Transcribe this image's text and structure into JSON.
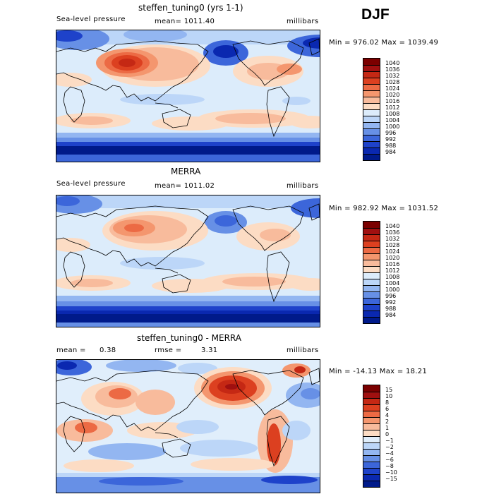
{
  "season": "DJF",
  "palette_abs": [
    "#7b0000",
    "#a01010",
    "#c52814",
    "#dc4020",
    "#ec6a44",
    "#f4966e",
    "#f8bb9c",
    "#fcdcc4",
    "#dcecfb",
    "#bcd6f8",
    "#93b6f1",
    "#6790e6",
    "#3c66da",
    "#1e42ca",
    "#0a28b0",
    "#001a8a"
  ],
  "palette_diff": [
    "#7b0000",
    "#a01010",
    "#c52814",
    "#dc4020",
    "#ec6a44",
    "#f4966e",
    "#f8bb9c",
    "#fcdcc4",
    "#e0eefb",
    "#bcd6f8",
    "#93b6f1",
    "#6790e6",
    "#3c66da",
    "#1e42ca",
    "#0a28b0",
    "#001a8a"
  ],
  "panels": [
    {
      "title": "steffen_tuning0 (yrs 1-1)",
      "variable": "Sea-level pressure",
      "stat_text": "mean= 1011.40",
      "units": "millibars",
      "range_text": "Min = 976.02 Max = 1039.49",
      "cbar_labels": [
        "1040",
        "1036",
        "1032",
        "1028",
        "1024",
        "1020",
        "1016",
        "1012",
        "1008",
        "1004",
        "1000",
        "996",
        "992",
        "988",
        "984"
      ]
    },
    {
      "title": "MERRA",
      "variable": "Sea-level pressure",
      "stat_text": "mean= 1011.02",
      "units": "millibars",
      "range_text": "Min = 982.92 Max = 1031.52",
      "cbar_labels": [
        "1040",
        "1036",
        "1032",
        "1028",
        "1024",
        "1020",
        "1016",
        "1012",
        "1008",
        "1004",
        "1000",
        "996",
        "992",
        "988",
        "984"
      ]
    },
    {
      "title": "steffen_tuning0 - MERRA",
      "stat_left_label": "mean =",
      "stat_left_value": "0.38",
      "stat_mid_label": "rmse =",
      "stat_mid_value": "3.31",
      "units": "millibars",
      "range_text": "Min = -14.13 Max =  18.21",
      "cbar_labels": [
        "15",
        "10",
        "8",
        "6",
        "4",
        "2",
        "1",
        "0",
        "−1",
        "−2",
        "−4",
        "−6",
        "−8",
        "−10",
        "−15"
      ]
    }
  ]
}
